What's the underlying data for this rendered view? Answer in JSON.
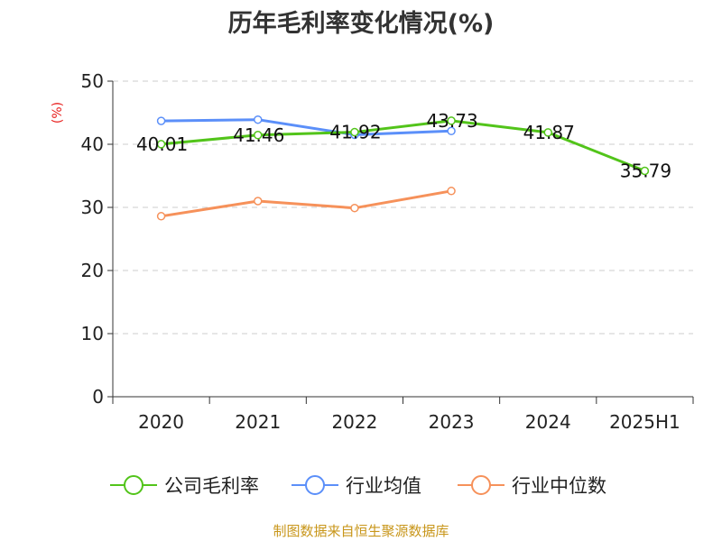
{
  "title": "历年毛利率变化情况(%)",
  "source": "制图数据来自恒生聚源数据库",
  "colors": {
    "gross_margin": "#52c41a",
    "industry_avg": "#5b8ff9",
    "industry_median": "#f6915a",
    "axis_unit": "#e8201e",
    "grid": "#cccccc",
    "source_text": "#c8961a"
  },
  "chart_data": {
    "type": "line",
    "title": "历年毛利率变化情况(%)",
    "categories": [
      "2020",
      "2021",
      "2022",
      "2023",
      "2024",
      "2025H1"
    ],
    "ylabel": "(%)",
    "ylim": [
      0,
      50
    ],
    "yticks": [
      0,
      10,
      20,
      30,
      40,
      50
    ],
    "grid": true,
    "legend_position": "bottom",
    "series": [
      {
        "name": "公司毛利率",
        "values": [
          40.01,
          41.46,
          41.92,
          43.73,
          41.87,
          35.79
        ],
        "labels": [
          "40.01",
          "41.46",
          "41.92",
          "43.73",
          "41.87",
          "35.79"
        ],
        "color": "#52c41a"
      },
      {
        "name": "行业均值",
        "values": [
          43.7,
          43.9,
          41.5,
          42.1,
          null,
          null
        ],
        "color": "#5b8ff9"
      },
      {
        "name": "行业中位数",
        "values": [
          28.6,
          31.0,
          29.9,
          32.6,
          null,
          null
        ],
        "color": "#f6915a"
      }
    ]
  }
}
